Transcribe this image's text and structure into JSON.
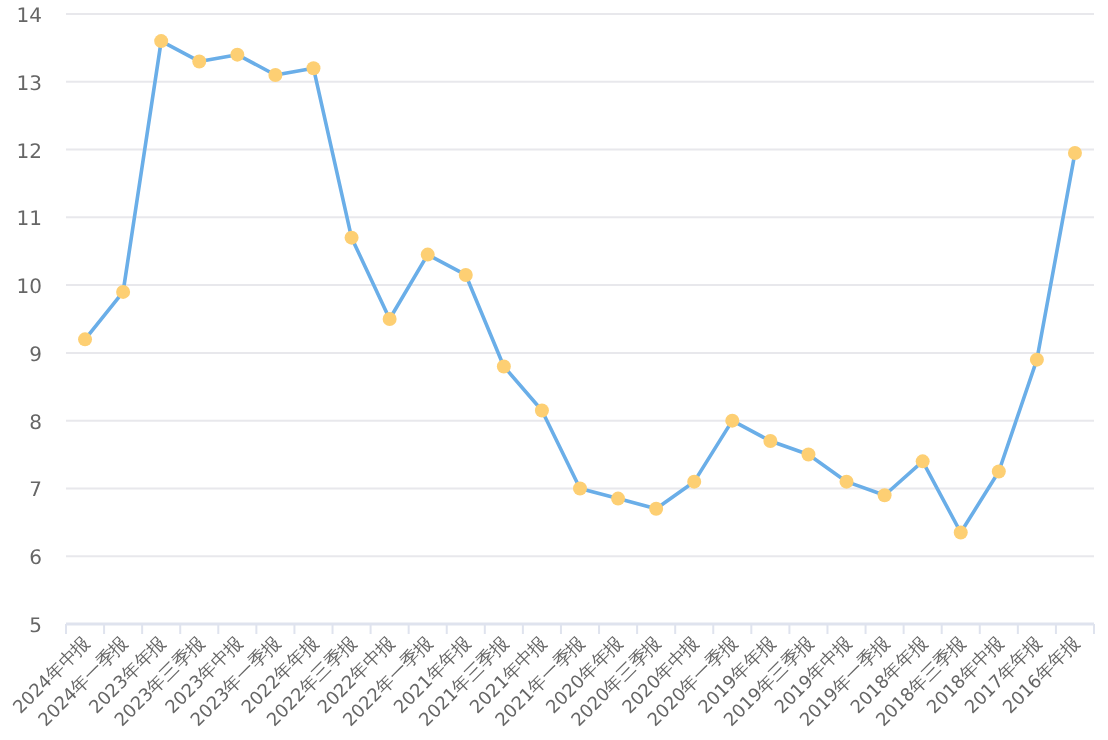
{
  "chart_data": {
    "type": "line",
    "categories": [
      "2024年中报",
      "2024年一季报",
      "2023年年报",
      "2023年三季报",
      "2023年中报",
      "2023年一季报",
      "2022年年报",
      "2022年三季报",
      "2022年中报",
      "2022年一季报",
      "2021年年报",
      "2021年三季报",
      "2021年中报",
      "2021年一季报",
      "2020年年报",
      "2020年三季报",
      "2020年中报",
      "2020年一季报",
      "2019年年报",
      "2019年三季报",
      "2019年中报",
      "2019年一季报",
      "2018年年报",
      "2018年三季报",
      "2018年中报",
      "2017年年报",
      "2016年年报"
    ],
    "series": [
      {
        "color": "#6aaee8",
        "values": [
          9.2,
          9.9,
          13.6,
          13.3,
          13.4,
          13.1,
          13.2,
          10.7,
          9.5,
          10.45,
          10.15,
          8.8,
          8.15,
          7.0,
          6.85,
          6.7,
          7.1,
          8.0,
          7.7,
          7.5,
          7.1,
          6.9,
          7.4,
          6.35,
          7.25,
          8.9,
          11.95
        ]
      }
    ],
    "ylim": [
      5,
      14
    ],
    "yticks": [
      5,
      6,
      7,
      8,
      9,
      10,
      11,
      12,
      13,
      14
    ],
    "grid": "y",
    "marker": "circle",
    "line_style": "solid"
  }
}
